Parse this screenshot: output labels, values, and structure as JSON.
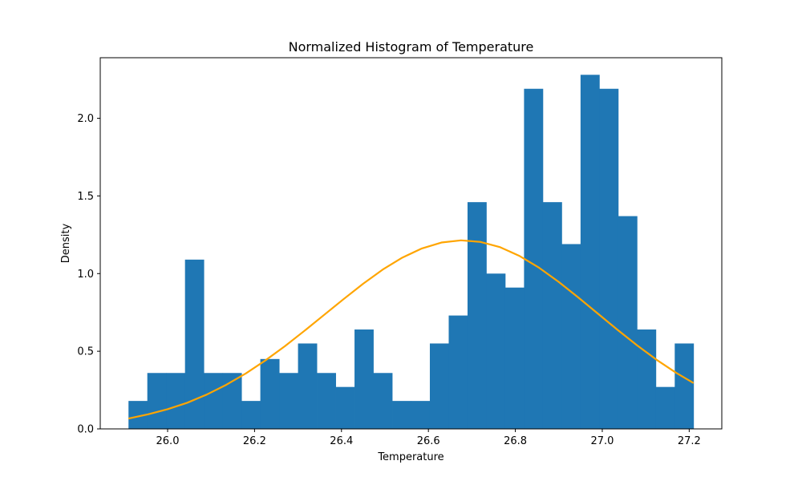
{
  "chart_data": {
    "type": "bar",
    "title": "Normalized Histogram of Temperature",
    "xlabel": "Temperature",
    "ylabel": "Density",
    "xlim": [
      25.845,
      27.275
    ],
    "ylim": [
      0,
      2.39
    ],
    "bar_color": "#1f77b4",
    "curve_color": "#ffa500",
    "grid": false,
    "legend": "none",
    "x_ticks": [
      26.0,
      26.2,
      26.4,
      26.6,
      26.8,
      27.0,
      27.2
    ],
    "x_tick_labels": [
      "26.0",
      "26.2",
      "26.4",
      "26.6",
      "26.8",
      "27.0",
      "27.2"
    ],
    "y_ticks": [
      0.0,
      0.5,
      1.0,
      1.5,
      2.0
    ],
    "y_tick_labels": [
      "0.0",
      "0.5",
      "1.0",
      "1.5",
      "2.0"
    ],
    "bin_edges": [
      25.91,
      25.9533,
      25.9967,
      26.04,
      26.0833,
      26.1267,
      26.17,
      26.2133,
      26.2567,
      26.3,
      26.3433,
      26.3867,
      26.43,
      26.4733,
      26.5167,
      26.56,
      26.6033,
      26.6467,
      26.69,
      26.7333,
      26.7767,
      26.82,
      26.8633,
      26.9067,
      26.95,
      26.9933,
      27.0367,
      27.08,
      27.1233,
      27.1667,
      27.21
    ],
    "values": [
      0.18,
      0.36,
      0.36,
      1.09,
      0.36,
      0.36,
      0.18,
      0.45,
      0.36,
      0.55,
      0.36,
      0.27,
      0.64,
      0.36,
      0.18,
      0.18,
      0.55,
      0.73,
      1.46,
      1.0,
      0.91,
      2.19,
      1.46,
      1.19,
      2.28,
      2.19,
      1.37,
      0.64,
      0.27,
      0.55
    ],
    "curve": {
      "x": [
        25.91,
        25.955,
        26.0,
        26.045,
        26.09,
        26.135,
        26.18,
        26.225,
        26.27,
        26.315,
        26.36,
        26.405,
        26.45,
        26.495,
        26.54,
        26.585,
        26.63,
        26.675,
        26.72,
        26.765,
        26.81,
        26.855,
        26.9,
        26.945,
        26.99,
        27.035,
        27.08,
        27.125,
        27.17,
        27.21
      ],
      "y": [
        0.067,
        0.094,
        0.127,
        0.168,
        0.221,
        0.284,
        0.357,
        0.441,
        0.533,
        0.632,
        0.734,
        0.836,
        0.935,
        1.026,
        1.103,
        1.162,
        1.2,
        1.214,
        1.204,
        1.17,
        1.113,
        1.037,
        0.946,
        0.846,
        0.742,
        0.638,
        0.538,
        0.445,
        0.361,
        0.295
      ]
    }
  }
}
